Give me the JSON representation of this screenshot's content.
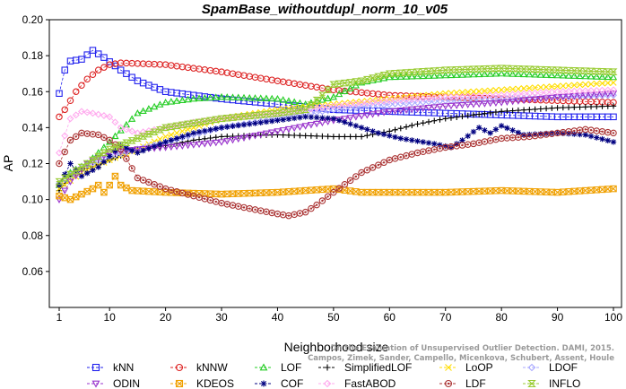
{
  "chart_data": {
    "type": "line",
    "title": "SpamBase_withoutdupl_norm_10_v05",
    "xlabel": "Neighborhood size",
    "ylabel": "AP",
    "xlim": [
      1,
      100
    ],
    "ylim": [
      0.04,
      0.2
    ],
    "x_ticks": [
      1,
      10,
      20,
      30,
      40,
      50,
      60,
      70,
      80,
      90,
      100
    ],
    "y_ticks": [
      0.06,
      0.08,
      0.1,
      0.12,
      0.14,
      0.16,
      0.18,
      0.2
    ],
    "y_tick_labels": [
      "0.06",
      "0.08",
      "0.10",
      "0.12",
      "0.14",
      "0.16",
      "0.18",
      "0.20"
    ],
    "grid": false,
    "legend_position": "bottom",
    "series": [
      {
        "name": "kNN",
        "color": "#2222ee",
        "marker": "square",
        "anchors": [
          [
            1,
            0.159
          ],
          [
            2,
            0.172
          ],
          [
            3,
            0.177
          ],
          [
            5,
            0.178
          ],
          [
            7,
            0.183
          ],
          [
            9,
            0.179
          ],
          [
            12,
            0.172
          ],
          [
            15,
            0.166
          ],
          [
            20,
            0.16
          ],
          [
            30,
            0.156
          ],
          [
            40,
            0.153
          ],
          [
            50,
            0.15
          ],
          [
            60,
            0.149
          ],
          [
            70,
            0.148
          ],
          [
            80,
            0.147
          ],
          [
            90,
            0.146
          ],
          [
            100,
            0.146
          ]
        ]
      },
      {
        "name": "kNNW",
        "color": "#dd2222",
        "marker": "circle",
        "anchors": [
          [
            1,
            0.146
          ],
          [
            2,
            0.15
          ],
          [
            4,
            0.16
          ],
          [
            6,
            0.167
          ],
          [
            8,
            0.172
          ],
          [
            10,
            0.175
          ],
          [
            12,
            0.176
          ],
          [
            20,
            0.175
          ],
          [
            30,
            0.171
          ],
          [
            40,
            0.166
          ],
          [
            50,
            0.161
          ],
          [
            60,
            0.158
          ],
          [
            70,
            0.157
          ],
          [
            80,
            0.156
          ],
          [
            90,
            0.155
          ],
          [
            100,
            0.154
          ]
        ]
      },
      {
        "name": "LOF",
        "color": "#22cc22",
        "marker": "triangle-up",
        "anchors": [
          [
            1,
            0.108
          ],
          [
            3,
            0.115
          ],
          [
            6,
            0.12
          ],
          [
            10,
            0.132
          ],
          [
            15,
            0.148
          ],
          [
            20,
            0.154
          ],
          [
            25,
            0.156
          ],
          [
            30,
            0.157
          ],
          [
            40,
            0.156
          ],
          [
            45,
            0.153
          ],
          [
            50,
            0.157
          ],
          [
            55,
            0.165
          ],
          [
            60,
            0.168
          ],
          [
            70,
            0.169
          ],
          [
            80,
            0.17
          ],
          [
            90,
            0.169
          ],
          [
            100,
            0.168
          ]
        ]
      },
      {
        "name": "SimplifiedLOF",
        "color": "#000000",
        "marker": "plus",
        "anchors": [
          [
            1,
            0.105
          ],
          [
            3,
            0.113
          ],
          [
            5,
            0.116
          ],
          [
            10,
            0.122
          ],
          [
            15,
            0.128
          ],
          [
            20,
            0.13
          ],
          [
            25,
            0.133
          ],
          [
            30,
            0.135
          ],
          [
            40,
            0.136
          ],
          [
            50,
            0.135
          ],
          [
            55,
            0.135
          ],
          [
            60,
            0.138
          ],
          [
            65,
            0.142
          ],
          [
            70,
            0.145
          ],
          [
            80,
            0.149
          ],
          [
            90,
            0.151
          ],
          [
            100,
            0.152
          ]
        ]
      },
      {
        "name": "LoOP",
        "color": "#ffdd00",
        "marker": "cross",
        "anchors": [
          [
            1,
            0.106
          ],
          [
            5,
            0.115
          ],
          [
            10,
            0.122
          ],
          [
            15,
            0.128
          ],
          [
            20,
            0.135
          ],
          [
            25,
            0.14
          ],
          [
            30,
            0.145
          ],
          [
            40,
            0.15
          ],
          [
            50,
            0.153
          ],
          [
            60,
            0.156
          ],
          [
            70,
            0.159
          ],
          [
            80,
            0.161
          ],
          [
            90,
            0.163
          ],
          [
            100,
            0.165
          ]
        ]
      },
      {
        "name": "LDOF",
        "color": "#aaaaff",
        "marker": "diamond",
        "anchors": [
          [
            1,
            0.109
          ],
          [
            5,
            0.118
          ],
          [
            10,
            0.124
          ],
          [
            20,
            0.132
          ],
          [
            30,
            0.14
          ],
          [
            40,
            0.145
          ],
          [
            50,
            0.15
          ],
          [
            60,
            0.153
          ],
          [
            70,
            0.155
          ],
          [
            80,
            0.156
          ],
          [
            90,
            0.157
          ],
          [
            100,
            0.158
          ]
        ]
      },
      {
        "name": "ODIN",
        "color": "#9933cc",
        "marker": "triangle-down",
        "anchors": [
          [
            1,
            0.1
          ],
          [
            3,
            0.11
          ],
          [
            6,
            0.12
          ],
          [
            10,
            0.126
          ],
          [
            15,
            0.128
          ],
          [
            20,
            0.129
          ],
          [
            30,
            0.132
          ],
          [
            40,
            0.138
          ],
          [
            50,
            0.144
          ],
          [
            60,
            0.149
          ],
          [
            70,
            0.152
          ],
          [
            80,
            0.154
          ],
          [
            90,
            0.157
          ],
          [
            100,
            0.159
          ]
        ]
      },
      {
        "name": "KDEOS",
        "color": "#f0a000",
        "marker": "square-x",
        "anchors": [
          [
            1,
            0.102
          ],
          [
            3,
            0.1
          ],
          [
            5,
            0.103
          ],
          [
            7,
            0.106
          ],
          [
            8,
            0.108
          ],
          [
            9,
            0.104
          ],
          [
            10,
            0.108
          ],
          [
            11,
            0.113
          ],
          [
            12,
            0.108
          ],
          [
            14,
            0.105
          ],
          [
            20,
            0.104
          ],
          [
            30,
            0.103
          ],
          [
            40,
            0.104
          ],
          [
            50,
            0.106
          ],
          [
            55,
            0.104
          ],
          [
            60,
            0.104
          ],
          [
            70,
            0.104
          ],
          [
            80,
            0.105
          ],
          [
            90,
            0.104
          ],
          [
            100,
            0.106
          ]
        ]
      },
      {
        "name": "COF",
        "color": "#000080",
        "marker": "asterisk",
        "anchors": [
          [
            1,
            0.108
          ],
          [
            3,
            0.12
          ],
          [
            5,
            0.113
          ],
          [
            8,
            0.118
          ],
          [
            12,
            0.13
          ],
          [
            15,
            0.126
          ],
          [
            20,
            0.132
          ],
          [
            25,
            0.137
          ],
          [
            30,
            0.14
          ],
          [
            35,
            0.142
          ],
          [
            40,
            0.144
          ],
          [
            45,
            0.146
          ],
          [
            50,
            0.145
          ],
          [
            52,
            0.143
          ],
          [
            55,
            0.14
          ],
          [
            58,
            0.137
          ],
          [
            62,
            0.134
          ],
          [
            68,
            0.131
          ],
          [
            71,
            0.129
          ],
          [
            73,
            0.133
          ],
          [
            76,
            0.14
          ],
          [
            78,
            0.137
          ],
          [
            80,
            0.141
          ],
          [
            84,
            0.136
          ],
          [
            90,
            0.137
          ],
          [
            95,
            0.136
          ],
          [
            100,
            0.132
          ]
        ]
      },
      {
        "name": "FastABOD",
        "color": "#ffaaee",
        "marker": "diamond",
        "anchors": [
          [
            1,
            0.126
          ],
          [
            3,
            0.145
          ],
          [
            5,
            0.149
          ],
          [
            7,
            0.148
          ],
          [
            10,
            0.146
          ],
          [
            12,
            0.14
          ],
          [
            15,
            0.137
          ],
          [
            20,
            0.14
          ],
          [
            25,
            0.143
          ],
          [
            30,
            0.145
          ],
          [
            40,
            0.148
          ],
          [
            50,
            0.152
          ],
          [
            60,
            0.155
          ],
          [
            70,
            0.157
          ],
          [
            80,
            0.158
          ],
          [
            90,
            0.16
          ],
          [
            100,
            0.161
          ]
        ]
      },
      {
        "name": "LDF",
        "color": "#aa3333",
        "marker": "circle-dot",
        "anchors": [
          [
            1,
            0.12
          ],
          [
            3,
            0.133
          ],
          [
            5,
            0.137
          ],
          [
            8,
            0.136
          ],
          [
            10,
            0.133
          ],
          [
            12,
            0.128
          ],
          [
            15,
            0.112
          ],
          [
            20,
            0.106
          ],
          [
            25,
            0.102
          ],
          [
            30,
            0.098
          ],
          [
            35,
            0.095
          ],
          [
            40,
            0.092
          ],
          [
            42,
            0.091
          ],
          [
            45,
            0.093
          ],
          [
            47,
            0.097
          ],
          [
            50,
            0.104
          ],
          [
            55,
            0.115
          ],
          [
            60,
            0.122
          ],
          [
            65,
            0.126
          ],
          [
            70,
            0.129
          ],
          [
            75,
            0.131
          ],
          [
            80,
            0.134
          ],
          [
            85,
            0.135
          ],
          [
            90,
            0.137
          ],
          [
            95,
            0.139
          ],
          [
            100,
            0.137
          ]
        ]
      },
      {
        "name": "INFLO",
        "color": "#99cc33",
        "marker": "hourglass",
        "anchors": [
          [
            1,
            0.11
          ],
          [
            5,
            0.118
          ],
          [
            10,
            0.128
          ],
          [
            20,
            0.14
          ],
          [
            30,
            0.145
          ],
          [
            40,
            0.148
          ],
          [
            45,
            0.15
          ],
          [
            48,
            0.158
          ],
          [
            50,
            0.164
          ],
          [
            55,
            0.166
          ],
          [
            60,
            0.17
          ],
          [
            70,
            0.172
          ],
          [
            80,
            0.173
          ],
          [
            90,
            0.172
          ],
          [
            100,
            0.171
          ]
        ]
      }
    ]
  },
  "legend": [
    [
      "kNN",
      "kNNW",
      "LOF",
      "SimplifiedLOF",
      "LoOP",
      "LDOF"
    ],
    [
      "ODIN",
      "KDEOS",
      "COF",
      "FastABOD",
      "LDF",
      "INFLO"
    ]
  ],
  "credit_line1": "Campos, Zimek, Sander, Campello, Micenkova, Schubert, Assent, Houle",
  "credit_line2": "On the Evaluation of Unsupervised Outlier Detection. DAMI, 2015."
}
